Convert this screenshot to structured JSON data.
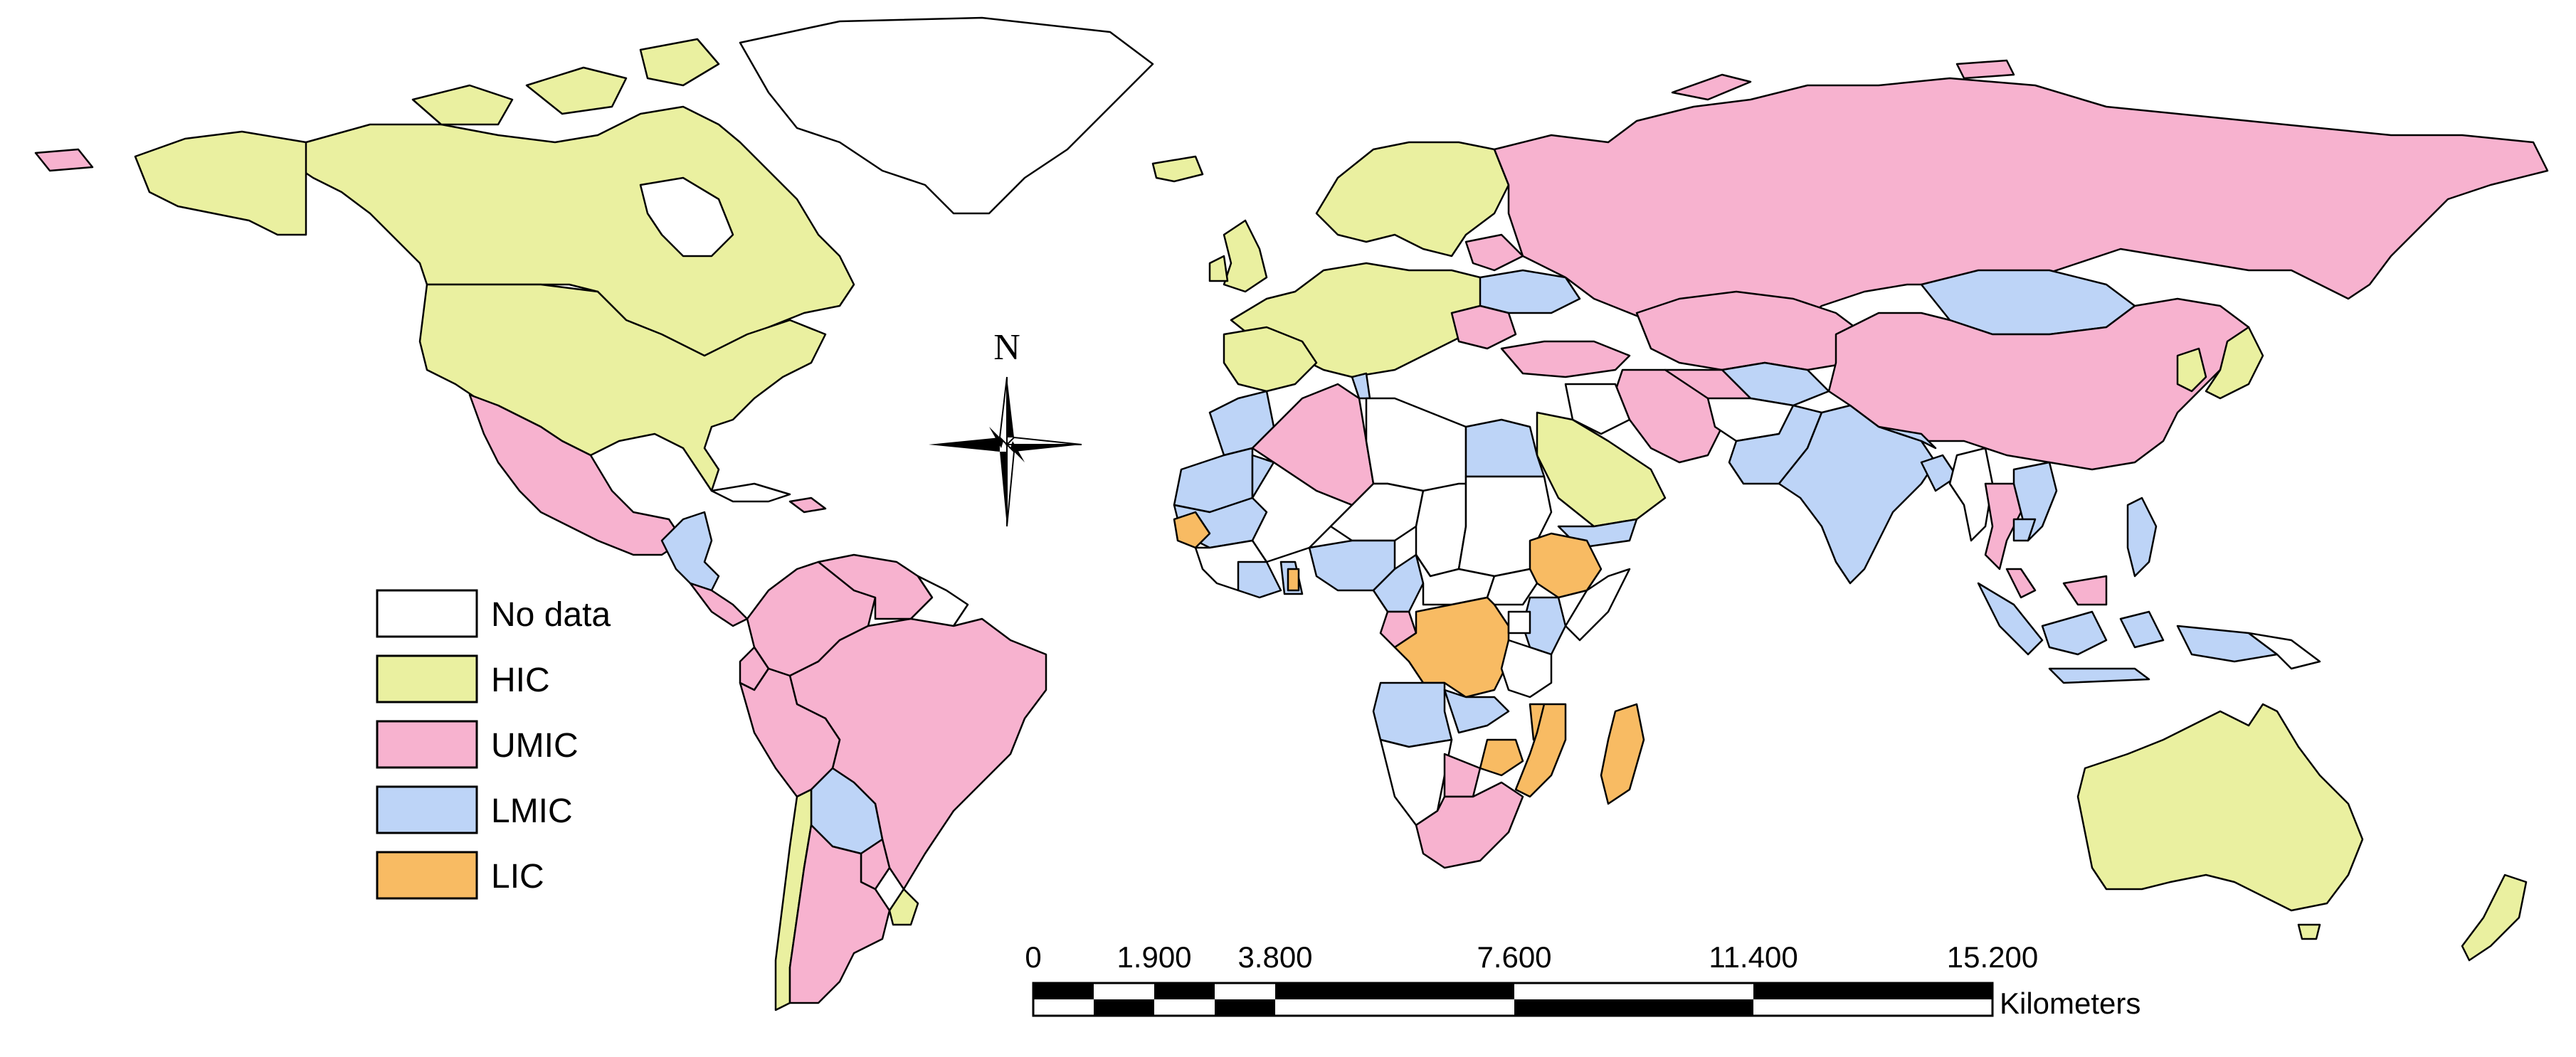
{
  "colors": {
    "no_data": "#ffffff",
    "HIC": "#eaf0a0",
    "UMIC": "#f7b2cf",
    "LMIC": "#bdd4f7",
    "LIC": "#f8bb63"
  },
  "legend": {
    "items": [
      {
        "key": "no_data",
        "label": "No data"
      },
      {
        "key": "HIC",
        "label": "HIC"
      },
      {
        "key": "UMIC",
        "label": "UMIC"
      },
      {
        "key": "LMIC",
        "label": "LMIC"
      },
      {
        "key": "LIC",
        "label": "LIC"
      }
    ]
  },
  "north_arrow": {
    "label": "N"
  },
  "scale_bar": {
    "ticks": [
      "0",
      "1.900",
      "3.800",
      "7.600",
      "11.400",
      "15.200"
    ],
    "unit": "Kilometers"
  }
}
